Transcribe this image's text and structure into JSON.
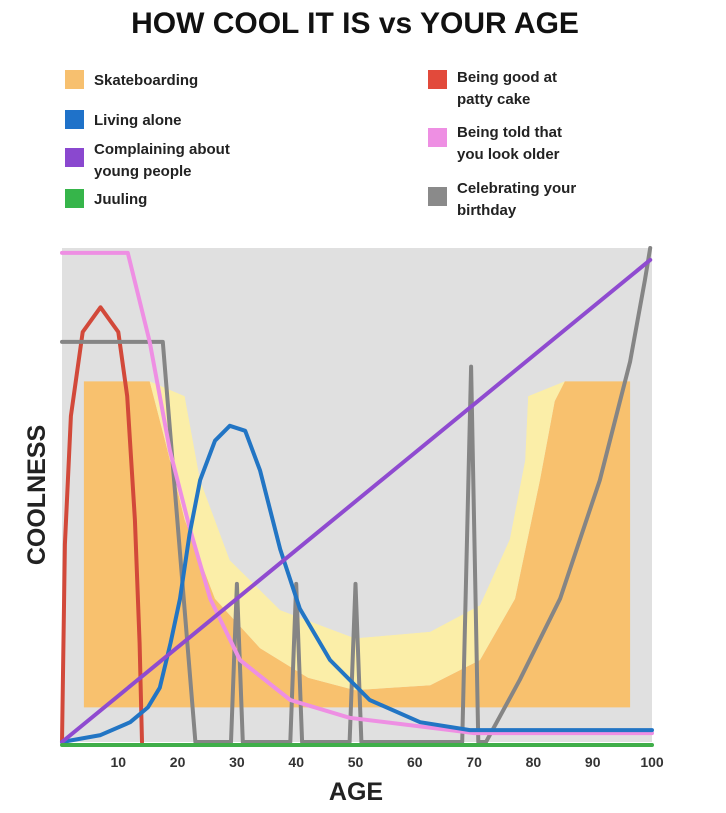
{
  "chart_data": {
    "type": "line",
    "title": "HOW COOL IT IS vs YOUR AGE",
    "xlabel": "AGE",
    "ylabel": "COOLNESS",
    "xlim": [
      0,
      100
    ],
    "ylim": [
      0,
      100
    ],
    "x_ticks": [
      10,
      20,
      30,
      40,
      50,
      60,
      70,
      80,
      90,
      100
    ],
    "y_ticks": [],
    "grid": false,
    "background": "#e0e0e0",
    "legend": {
      "placement": "top",
      "left": [
        {
          "label": "Skateboarding",
          "color": "#f7c06f"
        },
        {
          "label": "Living alone",
          "color": "#1f72c9"
        },
        {
          "label": "Complaining about young people",
          "lines": [
            "Complaining about",
            "young people"
          ],
          "color": "#8a48cf"
        },
        {
          "label": "Juuling",
          "color": "#36b54a"
        }
      ],
      "right": [
        {
          "label": "Being good at patty cake",
          "lines": [
            "Being good at",
            "patty cake"
          ],
          "color": "#e24a3b"
        },
        {
          "label": "Being told that you look older",
          "lines": [
            "Being told that",
            "you look older"
          ],
          "color": "#ee8fe3"
        },
        {
          "label": "Celebrating your birthday",
          "lines": [
            "Celebrating your",
            "birthday"
          ],
          "color": "#8a8a8a"
        }
      ]
    },
    "series": [
      {
        "name": "Skateboarding",
        "type": "area",
        "color": "#f8c16e",
        "highlight_color": "#fbeea8",
        "outline": [
          [
            4.2,
            7
          ],
          [
            4.2,
            73
          ],
          [
            15.3,
            73
          ],
          [
            17.9,
            61
          ],
          [
            21.2,
            45
          ],
          [
            26.3,
            29
          ],
          [
            33.9,
            19
          ],
          [
            42,
            13
          ],
          [
            49.9,
            10.5
          ],
          [
            62.6,
            11.5
          ],
          [
            71,
            16.6
          ],
          [
            76.9,
            29
          ],
          [
            81.1,
            53
          ],
          [
            83.6,
            69
          ],
          [
            85.3,
            73
          ],
          [
            96.3,
            73
          ],
          [
            96.3,
            7
          ]
        ],
        "highlight_band_outer": [
          [
            15.3,
            73
          ],
          [
            17.9,
            61
          ],
          [
            21.2,
            45
          ],
          [
            26.3,
            29
          ],
          [
            33.9,
            19
          ],
          [
            42,
            13
          ],
          [
            49.9,
            10.5
          ],
          [
            62.6,
            11.5
          ],
          [
            71,
            16.6
          ],
          [
            76.9,
            29
          ],
          [
            81.1,
            53
          ],
          [
            83.6,
            69
          ],
          [
            85.3,
            73
          ]
        ],
        "highlight_band_inner": [
          [
            79.1,
            70
          ],
          [
            78.6,
            57
          ],
          [
            76,
            41
          ],
          [
            71,
            27.7
          ],
          [
            62.6,
            22.3
          ],
          [
            49.9,
            21
          ],
          [
            37.3,
            26.7
          ],
          [
            28.8,
            36.8
          ],
          [
            23.8,
            53
          ],
          [
            21.2,
            70
          ]
        ]
      },
      {
        "name": "Being good at patty cake",
        "color": "#d2493a",
        "points": [
          [
            0.5,
            0
          ],
          [
            1,
            40
          ],
          [
            2,
            66
          ],
          [
            4,
            83
          ],
          [
            7,
            88
          ],
          [
            10,
            83
          ],
          [
            11.5,
            70
          ],
          [
            12.8,
            45
          ],
          [
            13.6,
            20
          ],
          [
            14,
            0
          ]
        ]
      },
      {
        "name": "Celebrating your birthday",
        "color": "#858585",
        "points": [
          [
            0.5,
            81
          ],
          [
            17.5,
            81
          ],
          [
            23,
            0
          ],
          [
            29,
            0
          ],
          [
            30,
            32
          ],
          [
            31,
            0
          ],
          [
            39,
            0
          ],
          [
            40,
            32
          ],
          [
            41,
            0
          ],
          [
            49,
            0
          ],
          [
            50,
            32
          ],
          [
            51,
            0
          ],
          [
            68,
            0
          ],
          [
            69.5,
            76
          ],
          [
            70.7,
            0
          ],
          [
            72,
            0
          ],
          [
            77.7,
            12.6
          ],
          [
            84.5,
            29
          ],
          [
            91.2,
            53
          ],
          [
            96.3,
            77
          ],
          [
            98.8,
            93.5
          ],
          [
            99.7,
            100
          ]
        ]
      },
      {
        "name": "Being told that you look older",
        "color": "#ee8fe3",
        "points": [
          [
            0.5,
            99
          ],
          [
            11.6,
            99
          ],
          [
            15.3,
            81
          ],
          [
            18.7,
            59
          ],
          [
            22.1,
            43
          ],
          [
            25.5,
            29
          ],
          [
            30.5,
            16.6
          ],
          [
            39,
            8.5
          ],
          [
            49,
            4.9
          ],
          [
            66,
            2.4
          ],
          [
            70,
            1.8
          ],
          [
            100,
            1.8
          ]
        ]
      },
      {
        "name": "Living alone",
        "color": "#2275c4",
        "points": [
          [
            0.5,
            0
          ],
          [
            7,
            1.4
          ],
          [
            12,
            4
          ],
          [
            15,
            7
          ],
          [
            17,
            11
          ],
          [
            18.8,
            20
          ],
          [
            20.4,
            29
          ],
          [
            22,
            42
          ],
          [
            23.8,
            53
          ],
          [
            26.3,
            61
          ],
          [
            28.8,
            64
          ],
          [
            31.4,
            63
          ],
          [
            33.9,
            55
          ],
          [
            37.3,
            39
          ],
          [
            40.6,
            27
          ],
          [
            45.7,
            16.6
          ],
          [
            52.4,
            8.5
          ],
          [
            60.9,
            4
          ],
          [
            69.3,
            2.4
          ],
          [
            100,
            2.4
          ]
        ]
      },
      {
        "name": "Complaining about young people",
        "color": "#8f4bd0",
        "points": [
          [
            0.5,
            0
          ],
          [
            99.7,
            97.6
          ]
        ]
      },
      {
        "name": "Juuling",
        "color": "#3fae49",
        "points": [
          [
            0.5,
            -0.6
          ],
          [
            100,
            -0.6
          ]
        ]
      }
    ]
  }
}
